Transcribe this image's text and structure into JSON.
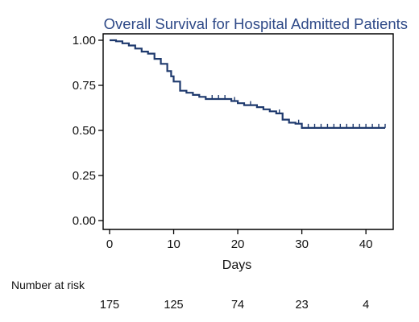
{
  "chart_data": {
    "type": "line",
    "title": "Overall Survival for Hospital Admitted Patients",
    "xlabel": "Days",
    "ylabel": "",
    "xlim": [
      0,
      43
    ],
    "ylim": [
      0,
      1
    ],
    "x_ticks": [
      0,
      10,
      20,
      30,
      40
    ],
    "y_ticks": [
      "0.00",
      "0.25",
      "0.50",
      "0.75",
      "1.00"
    ],
    "grid": false,
    "line_color": "#1f3a6e",
    "series": [
      {
        "name": "",
        "step": true,
        "points": [
          [
            0,
            1.0
          ],
          [
            1,
            0.994
          ],
          [
            2,
            0.983
          ],
          [
            3,
            0.971
          ],
          [
            4,
            0.954
          ],
          [
            5,
            0.937
          ],
          [
            6,
            0.926
          ],
          [
            7,
            0.897
          ],
          [
            8,
            0.869
          ],
          [
            9,
            0.829
          ],
          [
            9.6,
            0.8
          ],
          [
            10,
            0.771
          ],
          [
            11,
            0.72
          ],
          [
            12,
            0.709
          ],
          [
            13,
            0.697
          ],
          [
            14,
            0.686
          ],
          [
            15,
            0.674
          ],
          [
            19,
            0.663
          ],
          [
            20,
            0.651
          ],
          [
            21,
            0.64
          ],
          [
            23,
            0.629
          ],
          [
            24,
            0.617
          ],
          [
            25,
            0.606
          ],
          [
            26,
            0.594
          ],
          [
            27,
            0.56
          ],
          [
            28,
            0.543
          ],
          [
            29,
            0.537
          ],
          [
            30,
            0.514
          ],
          [
            43,
            0.514
          ]
        ],
        "censored": [
          [
            16,
            0.674
          ],
          [
            17,
            0.674
          ],
          [
            18,
            0.674
          ],
          [
            19.5,
            0.663
          ],
          [
            22,
            0.64
          ],
          [
            26.5,
            0.594
          ],
          [
            29.5,
            0.537
          ],
          [
            31,
            0.514
          ],
          [
            32,
            0.514
          ],
          [
            33,
            0.514
          ],
          [
            34,
            0.514
          ],
          [
            35,
            0.514
          ],
          [
            36,
            0.514
          ],
          [
            37,
            0.514
          ],
          [
            38,
            0.514
          ],
          [
            39,
            0.514
          ],
          [
            40,
            0.514
          ],
          [
            41,
            0.514
          ],
          [
            42,
            0.514
          ],
          [
            43,
            0.514
          ]
        ]
      }
    ],
    "risk_table": {
      "label": "Number at risk",
      "values": [
        "175",
        "125",
        "74",
        "23",
        "4"
      ]
    }
  }
}
